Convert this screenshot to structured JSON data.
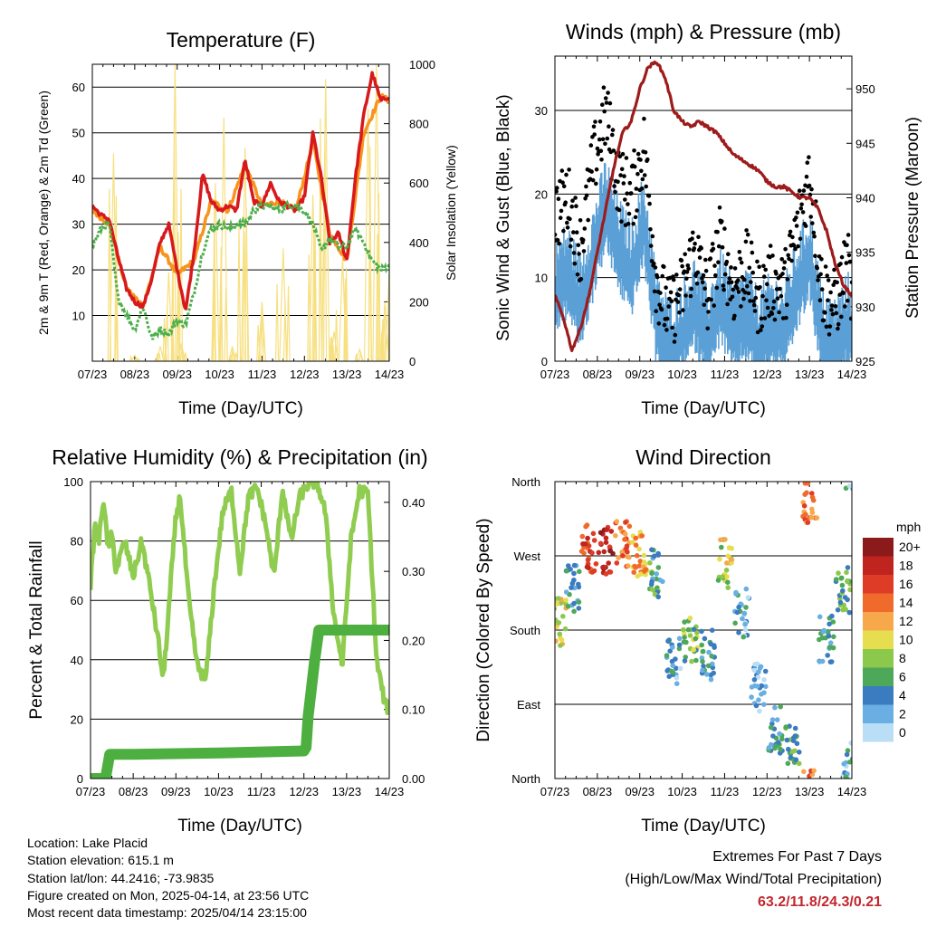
{
  "chart_data": [
    {
      "type": "line",
      "title": "Temperature (F)",
      "xlabel": "Time (Day/UTC)",
      "ylabel": "2m & 9m T (Red, Orange) & 2m Td (Green)",
      "ylabel_right": "Solar Insolation (Yellow)",
      "categories": [
        "07/23",
        "08/23",
        "09/23",
        "10/23",
        "11/23",
        "12/23",
        "13/23",
        "14/23"
      ],
      "ylim": [
        0,
        65
      ],
      "yticks": [
        10,
        20,
        30,
        40,
        50,
        60
      ],
      "ylim_right": [
        0,
        1000
      ],
      "yticks_right": [
        0,
        200,
        400,
        600,
        800,
        1000
      ],
      "series": [
        {
          "name": "2m T",
          "color": "#d7191c",
          "x": [
            0,
            0.2,
            0.4,
            0.6,
            0.8,
            1.0,
            1.2,
            1.4,
            1.6,
            1.8,
            2.0,
            2.2,
            2.4,
            2.6,
            2.8,
            3.0,
            3.2,
            3.4,
            3.6,
            3.8,
            4.0,
            4.2,
            4.4,
            4.6,
            4.8,
            5.0,
            5.2,
            5.4,
            5.6,
            5.8,
            6.0,
            6.2,
            6.4,
            6.6,
            6.8,
            7.0
          ],
          "values": [
            34,
            32,
            31,
            23,
            16,
            13,
            12,
            18,
            26,
            30,
            20,
            11,
            24,
            41,
            35,
            33,
            34,
            33,
            44,
            35,
            34,
            39,
            35,
            34,
            33,
            36,
            50,
            40,
            26,
            28,
            22,
            40,
            54,
            63,
            57,
            58
          ]
        },
        {
          "name": "9m T",
          "color": "#f7941d",
          "x": [
            0,
            0.4,
            0.8,
            1.2,
            1.6,
            2.0,
            2.4,
            2.8,
            3.2,
            3.6,
            4.0,
            4.4,
            4.8,
            5.2,
            5.6,
            6.0,
            6.4,
            6.8,
            7.0
          ],
          "values": [
            33,
            30,
            16,
            12,
            25,
            19,
            22,
            35,
            33,
            43,
            34,
            35,
            33,
            48,
            28,
            22,
            50,
            58,
            57
          ]
        },
        {
          "name": "2m Td",
          "color": "#4daf4a",
          "x": [
            0,
            0.2,
            0.4,
            0.6,
            0.8,
            1.0,
            1.2,
            1.4,
            1.6,
            1.8,
            2.0,
            2.2,
            2.4,
            2.6,
            2.8,
            3.0,
            3.2,
            3.4,
            3.6,
            3.8,
            4.0,
            4.2,
            4.4,
            4.6,
            4.8,
            5.0,
            5.2,
            5.4,
            5.6,
            5.8,
            6.0,
            6.2,
            6.4,
            6.6,
            6.8,
            7.0
          ],
          "values": [
            25,
            29,
            30,
            14,
            10,
            7,
            12,
            5,
            7,
            6,
            9,
            8,
            15,
            24,
            29,
            30,
            29,
            30,
            30,
            33,
            34,
            34,
            33,
            34,
            34,
            33,
            30,
            24,
            27,
            25,
            25,
            29,
            26,
            22,
            20,
            21
          ]
        },
        {
          "name": "Solar Insolation",
          "color": "#f7e081",
          "axis": "right",
          "x": [
            0,
            0.5,
            1.0,
            1.3,
            1.6,
            1.8,
            1.95,
            2.1,
            2.4,
            2.9,
            3.1,
            3.3,
            3.6,
            4.0,
            4.5,
            5.0,
            5.2,
            5.5,
            5.7,
            5.9,
            6.3,
            6.5,
            6.7,
            6.9,
            7.0
          ],
          "values": [
            0,
            700,
            20,
            0,
            50,
            300,
            1000,
            60,
            0,
            600,
            820,
            50,
            720,
            200,
            380,
            0,
            560,
            950,
            100,
            350,
            40,
            850,
            1000,
            200,
            300
          ]
        }
      ]
    },
    {
      "type": "line",
      "title": "Winds (mph) & Pressure (mb)",
      "xlabel": "Time (Day/UTC)",
      "ylabel": "Sonic Wind & Gust (Blue, Black)",
      "ylabel_right": "Station Pressure (Maroon)",
      "categories": [
        "07/23",
        "08/23",
        "09/23",
        "10/23",
        "11/23",
        "12/23",
        "13/23",
        "14/23"
      ],
      "ylim": [
        0,
        36.5
      ],
      "yticks": [
        0,
        10,
        20,
        30
      ],
      "ylim_right": [
        925,
        953
      ],
      "yticks_right": [
        925,
        930,
        935,
        940,
        945,
        950
      ],
      "series": [
        {
          "name": "Sonic Wind",
          "color": "#5aa0d6",
          "x": [
            0,
            0.3,
            0.6,
            0.9,
            1.2,
            1.5,
            1.8,
            2.1,
            2.4,
            2.7,
            3.0,
            3.3,
            3.6,
            3.9,
            4.2,
            4.5,
            4.8,
            5.1,
            5.4,
            5.7,
            6.0,
            6.3,
            6.6,
            6.9,
            7.0
          ],
          "values": [
            10,
            12,
            8,
            14,
            20,
            15,
            12,
            18,
            6,
            3,
            5,
            8,
            4,
            9,
            5,
            7,
            4,
            6,
            5,
            10,
            14,
            4,
            3,
            6,
            5
          ]
        },
        {
          "name": "Gust",
          "color": "#000000",
          "x": [
            0,
            0.3,
            0.6,
            0.9,
            1.2,
            1.5,
            1.8,
            2.1,
            2.4,
            2.7,
            3.0,
            3.3,
            3.6,
            3.9,
            4.2,
            4.5,
            4.8,
            5.1,
            5.4,
            5.7,
            6.0,
            6.3,
            6.6,
            6.9,
            7.0
          ],
          "values": [
            18,
            20,
            14,
            24,
            30,
            22,
            20,
            26,
            10,
            6,
            9,
            14,
            8,
            15,
            9,
            12,
            8,
            10,
            9,
            16,
            23,
            9,
            7,
            12,
            8
          ]
        },
        {
          "name": "Station Pressure",
          "color": "#9e1b1b",
          "axis": "right",
          "x": [
            0,
            0.2,
            0.4,
            0.6,
            0.8,
            1.0,
            1.2,
            1.4,
            1.6,
            1.8,
            2.0,
            2.2,
            2.4,
            2.6,
            2.8,
            3.0,
            3.2,
            3.4,
            3.6,
            3.8,
            4.0,
            4.2,
            4.4,
            4.6,
            4.8,
            5.0,
            5.2,
            5.4,
            5.6,
            5.8,
            6.0,
            6.2,
            6.4,
            6.6,
            6.8,
            7.0
          ],
          "values": [
            931,
            929,
            926,
            928,
            931,
            935,
            939,
            943,
            946,
            947,
            950,
            952,
            952.5,
            951,
            948,
            947,
            946.5,
            947,
            946.5,
            946,
            945,
            944,
            943.5,
            943,
            942.5,
            941.5,
            941,
            941,
            940.5,
            940,
            940,
            939,
            937,
            934,
            932,
            931
          ]
        }
      ]
    },
    {
      "type": "line",
      "title": "Relative Humidity (%) & Precipitation (in)",
      "xlabel": "Time (Day/UTC)",
      "ylabel": "Percent & Total Rainfall",
      "categories": [
        "07/23",
        "08/23",
        "09/23",
        "10/23",
        "11/23",
        "12/23",
        "13/23",
        "14/23"
      ],
      "ylim": [
        0,
        100
      ],
      "yticks": [
        0,
        20,
        40,
        60,
        80,
        100
      ],
      "ylim_right": [
        0,
        0.43
      ],
      "yticks_right_labels": [
        "0.00",
        "0.10",
        "0.20",
        "0.30",
        "0.40"
      ],
      "series": [
        {
          "name": "Relative Humidity",
          "color": "#8fcc4f",
          "x": [
            0,
            0.1,
            0.2,
            0.3,
            0.4,
            0.5,
            0.6,
            0.8,
            1.0,
            1.2,
            1.4,
            1.6,
            1.7,
            1.8,
            1.9,
            2.0,
            2.1,
            2.3,
            2.5,
            2.7,
            2.9,
            3.1,
            3.3,
            3.5,
            3.7,
            3.9,
            4.1,
            4.3,
            4.5,
            4.7,
            4.9,
            5.1,
            5.3,
            5.5,
            5.7,
            5.9,
            6.1,
            6.3,
            6.5,
            6.7,
            6.9,
            7.0
          ],
          "values": [
            65,
            85,
            80,
            95,
            78,
            82,
            70,
            80,
            68,
            80,
            64,
            45,
            33,
            50,
            70,
            88,
            95,
            60,
            38,
            33,
            65,
            90,
            97,
            70,
            95,
            98,
            86,
            68,
            98,
            80,
            95,
            99,
            100,
            90,
            55,
            38,
            80,
            97,
            96,
            40,
            25,
            23
          ]
        },
        {
          "name": "Total Rainfall",
          "color": "#4caf3f",
          "axis": "right",
          "x": [
            0,
            0.35,
            0.45,
            1.0,
            3.0,
            5.0,
            5.05,
            5.1,
            5.25,
            5.35,
            5.5,
            7.0
          ],
          "values": [
            0.0,
            0.0,
            0.035,
            0.035,
            0.037,
            0.04,
            0.045,
            0.09,
            0.17,
            0.215,
            0.215,
            0.215
          ]
        }
      ]
    },
    {
      "type": "scatter",
      "title": "Wind Direction",
      "xlabel": "Time (Day/UTC)",
      "ylabel": "Direction (Colored By Speed)",
      "categories": [
        "07/23",
        "08/23",
        "09/23",
        "10/23",
        "11/23",
        "12/23",
        "13/23",
        "14/23"
      ],
      "ylim": [
        0,
        360
      ],
      "yticks_labels": [
        "North",
        "East",
        "South",
        "West",
        "North"
      ],
      "colorbar": {
        "title": "mph",
        "labels": [
          "20+",
          "18",
          "16",
          "14",
          "12",
          "10",
          "8",
          "6",
          "4",
          "2",
          "0"
        ],
        "colors": [
          "#8b1a1a",
          "#c0241f",
          "#de3c27",
          "#f06a2c",
          "#f7a84a",
          "#e6de4e",
          "#8cc84b",
          "#4ea85a",
          "#3b7bc0",
          "#6aaee3",
          "#b9def5"
        ]
      },
      "clusters": [
        {
          "x": 0.1,
          "dir": 190,
          "speed": 10
        },
        {
          "x": 0.4,
          "dir": 230,
          "speed": 4
        },
        {
          "x": 0.8,
          "dir": 280,
          "speed": 16
        },
        {
          "x": 1.2,
          "dir": 275,
          "speed": 18
        },
        {
          "x": 1.6,
          "dir": 285,
          "speed": 14
        },
        {
          "x": 2.0,
          "dir": 270,
          "speed": 12
        },
        {
          "x": 2.4,
          "dir": 250,
          "speed": 5
        },
        {
          "x": 2.8,
          "dir": 140,
          "speed": 3
        },
        {
          "x": 3.2,
          "dir": 170,
          "speed": 7
        },
        {
          "x": 3.6,
          "dir": 150,
          "speed": 4
        },
        {
          "x": 4.0,
          "dir": 260,
          "speed": 9
        },
        {
          "x": 4.4,
          "dir": 200,
          "speed": 3
        },
        {
          "x": 4.8,
          "dir": 110,
          "speed": 2
        },
        {
          "x": 5.2,
          "dir": 60,
          "speed": 4
        },
        {
          "x": 5.6,
          "dir": 40,
          "speed": 6
        },
        {
          "x": 6.0,
          "dir": 340,
          "speed": 14
        },
        {
          "x": 6.4,
          "dir": 170,
          "speed": 4
        },
        {
          "x": 6.8,
          "dir": 230,
          "speed": 6
        },
        {
          "x": 6.95,
          "dir": 20,
          "speed": 3
        }
      ]
    }
  ],
  "info": {
    "location": "Location: Lake Placid",
    "elevation": "Station elevation: 615.1 m",
    "latlon": "Station lat/lon: 44.2416; -73.9835",
    "created": "Figure created on Mon, 2025-04-14, at 23:56 UTC",
    "recent": "Most recent data timestamp: 2025/04/14 23:15:00"
  },
  "extremes": {
    "title": "Extremes For Past 7 Days",
    "subtitle": "(High/Low/Max Wind/Total Precipitation)",
    "values": "63.2/11.8/24.3/0.21"
  }
}
